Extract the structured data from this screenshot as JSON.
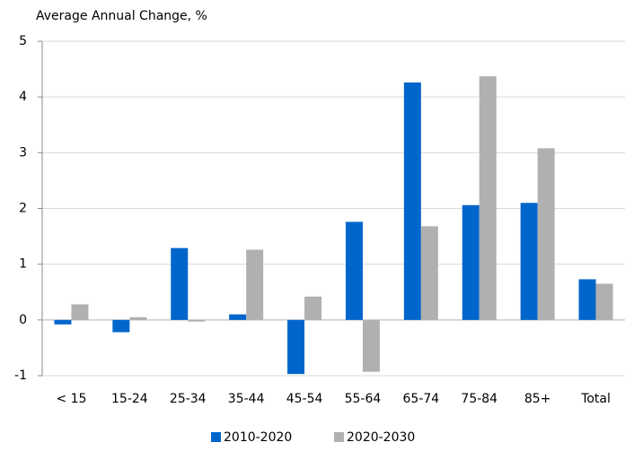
{
  "chart_data": {
    "type": "bar",
    "title": "Average Annual Change, %",
    "categories": [
      "< 15",
      "15-24",
      "25-34",
      "35-44",
      "45-54",
      "55-64",
      "65-74",
      "75-84",
      "85+",
      "Total"
    ],
    "series": [
      {
        "name": "2010-2020",
        "color": "#0066cc",
        "values": [
          -0.08,
          -0.22,
          1.29,
          0.1,
          -0.97,
          1.76,
          4.26,
          2.06,
          2.1,
          0.73
        ]
      },
      {
        "name": "2020-2030",
        "color": "#b0b0b0",
        "values": [
          0.28,
          0.05,
          -0.03,
          1.26,
          0.42,
          -0.93,
          1.68,
          4.37,
          3.08,
          0.65
        ]
      }
    ],
    "ylim": [
      -1,
      5
    ],
    "yticks": [
      -1,
      0,
      1,
      2,
      3,
      4,
      5
    ],
    "grid": true,
    "legend": "bottom"
  }
}
